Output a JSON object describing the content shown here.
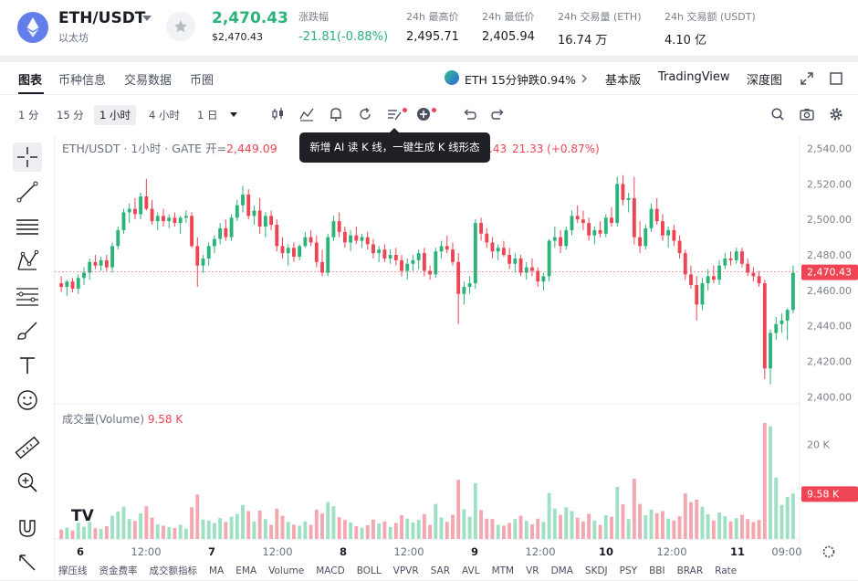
{
  "header": {
    "pair": "ETH/USDT",
    "coin_name": "以太坊",
    "last_price": "2,470.43",
    "last_price_usd": "$2,470.43",
    "change_label": "涨跌幅",
    "change_value": "-21.81(-0.88%)",
    "high_label": "24h 最高价",
    "high_value": "2,495.71",
    "low_label": "24h 最低价",
    "low_value": "2,405.94",
    "vol_label": "24h 交易量 (ETH)",
    "vol_value": "16.74 万",
    "turnover_label": "24h 交易额 (USDT)",
    "turnover_value": "4.10 亿"
  },
  "tabs": {
    "items": [
      "图表",
      "币种信息",
      "交易数据",
      "币圈"
    ],
    "eth_move": "ETH 15分钟跌0.94%",
    "basic": "基本版",
    "tradingview": "TradingView",
    "depth": "深度图"
  },
  "toolbar": {
    "timeframes": [
      "1 分",
      "15 分",
      "1 小时",
      "4 小时",
      "1 日"
    ],
    "active_timeframe": "1 小时"
  },
  "tooltip": "新增 AI 读 K 线，一键生成 K 线形态",
  "legend": {
    "symbol": "ETH/USDT · 1小时 · GATE",
    "open_label": "开=",
    "open_value": "2,449.09",
    "change_tail": ".43",
    "change_full": "21.33 (+0.87%)",
    "volume_label": "成交量(Volume)",
    "volume_value": "9.58 K"
  },
  "indicators": [
    "撑压线",
    "资金费率",
    "成交额指标",
    "MA",
    "EMA",
    "Volume",
    "MACD",
    "BOLL",
    "VPVR",
    "SAR",
    "AVL",
    "MTM",
    "VR",
    "DMA",
    "SKDJ",
    "PSY",
    "BBI",
    "BRAR",
    "Rate"
  ],
  "colors": {
    "up": "#2bb37a",
    "down": "#ef4453",
    "up_vol": "#9ee0c3",
    "down_vol": "#f5a7b0"
  },
  "chart_data": {
    "type": "candlestick",
    "price_axis": [
      "2,540.00",
      "2,520.00",
      "2,500.00",
      "2,480.00",
      "2,460.00",
      "2,440.00",
      "2,420.00",
      "2,400.00"
    ],
    "price_ylim": [
      2396.6,
      2547.5
    ],
    "volume_axis": [
      "20 K"
    ],
    "volume_ylim": [
      0,
      27000
    ],
    "time_axis": [
      "6",
      "12:00",
      "7",
      "12:00",
      "8",
      "12:00",
      "9",
      "12:00",
      "10",
      "12:00",
      "11",
      "09:00"
    ],
    "last_price": 2470.43,
    "last_price_label": "2,470.43",
    "last_volume_label": "9.58 K",
    "last_volume": 9580,
    "candles": [
      {
        "o": 2464,
        "h": 2468,
        "l": 2459,
        "c": 2462,
        "v": 2000
      },
      {
        "o": 2462,
        "h": 2466,
        "l": 2457,
        "c": 2465,
        "v": 2400
      },
      {
        "o": 2465,
        "h": 2467,
        "l": 2459,
        "c": 2461,
        "v": 1800
      },
      {
        "o": 2461,
        "h": 2469,
        "l": 2458,
        "c": 2467,
        "v": 3400
      },
      {
        "o": 2467,
        "h": 2473,
        "l": 2463,
        "c": 2470,
        "v": 2600
      },
      {
        "o": 2470,
        "h": 2478,
        "l": 2466,
        "c": 2476,
        "v": 3600
      },
      {
        "o": 2476,
        "h": 2480,
        "l": 2472,
        "c": 2474,
        "v": 2300
      },
      {
        "o": 2474,
        "h": 2479,
        "l": 2471,
        "c": 2477,
        "v": 2100
      },
      {
        "o": 2477,
        "h": 2480,
        "l": 2471,
        "c": 2473,
        "v": 2700
      },
      {
        "o": 2473,
        "h": 2487,
        "l": 2470,
        "c": 2485,
        "v": 4900
      },
      {
        "o": 2485,
        "h": 2496,
        "l": 2483,
        "c": 2494,
        "v": 5800
      },
      {
        "o": 2494,
        "h": 2506,
        "l": 2492,
        "c": 2504,
        "v": 6800
      },
      {
        "o": 2504,
        "h": 2509,
        "l": 2498,
        "c": 2506,
        "v": 4200
      },
      {
        "o": 2506,
        "h": 2512,
        "l": 2500,
        "c": 2503,
        "v": 3800
      },
      {
        "o": 2503,
        "h": 2515,
        "l": 2500,
        "c": 2513,
        "v": 5400
      },
      {
        "o": 2513,
        "h": 2523,
        "l": 2505,
        "c": 2506,
        "v": 6900
      },
      {
        "o": 2506,
        "h": 2511,
        "l": 2497,
        "c": 2499,
        "v": 4500
      },
      {
        "o": 2499,
        "h": 2504,
        "l": 2494,
        "c": 2502,
        "v": 3100
      },
      {
        "o": 2502,
        "h": 2506,
        "l": 2496,
        "c": 2499,
        "v": 2800
      },
      {
        "o": 2499,
        "h": 2503,
        "l": 2495,
        "c": 2501,
        "v": 2500
      },
      {
        "o": 2501,
        "h": 2504,
        "l": 2496,
        "c": 2498,
        "v": 2300
      },
      {
        "o": 2498,
        "h": 2502,
        "l": 2492,
        "c": 2501,
        "v": 3000
      },
      {
        "o": 2501,
        "h": 2505,
        "l": 2498,
        "c": 2502,
        "v": 2200
      },
      {
        "o": 2502,
        "h": 2504,
        "l": 2484,
        "c": 2485,
        "v": 6700
      },
      {
        "o": 2485,
        "h": 2490,
        "l": 2462,
        "c": 2474,
        "v": 9400
      },
      {
        "o": 2474,
        "h": 2480,
        "l": 2470,
        "c": 2478,
        "v": 4100
      },
      {
        "o": 2478,
        "h": 2487,
        "l": 2474,
        "c": 2485,
        "v": 3900
      },
      {
        "o": 2485,
        "h": 2491,
        "l": 2481,
        "c": 2489,
        "v": 3400
      },
      {
        "o": 2489,
        "h": 2498,
        "l": 2486,
        "c": 2495,
        "v": 4400
      },
      {
        "o": 2495,
        "h": 2500,
        "l": 2488,
        "c": 2490,
        "v": 3600
      },
      {
        "o": 2490,
        "h": 2503,
        "l": 2488,
        "c": 2501,
        "v": 4700
      },
      {
        "o": 2501,
        "h": 2511,
        "l": 2499,
        "c": 2508,
        "v": 5300
      },
      {
        "o": 2508,
        "h": 2519,
        "l": 2504,
        "c": 2514,
        "v": 7200
      },
      {
        "o": 2514,
        "h": 2517,
        "l": 2500,
        "c": 2502,
        "v": 5900
      },
      {
        "o": 2502,
        "h": 2508,
        "l": 2497,
        "c": 2505,
        "v": 3700
      },
      {
        "o": 2505,
        "h": 2512,
        "l": 2492,
        "c": 2496,
        "v": 6000
      },
      {
        "o": 2496,
        "h": 2504,
        "l": 2490,
        "c": 2502,
        "v": 4200
      },
      {
        "o": 2502,
        "h": 2505,
        "l": 2494,
        "c": 2497,
        "v": 3000
      },
      {
        "o": 2497,
        "h": 2500,
        "l": 2482,
        "c": 2485,
        "v": 6400
      },
      {
        "o": 2485,
        "h": 2490,
        "l": 2478,
        "c": 2481,
        "v": 4900
      },
      {
        "o": 2481,
        "h": 2486,
        "l": 2474,
        "c": 2484,
        "v": 3600
      },
      {
        "o": 2484,
        "h": 2487,
        "l": 2476,
        "c": 2479,
        "v": 3000
      },
      {
        "o": 2479,
        "h": 2486,
        "l": 2477,
        "c": 2485,
        "v": 2800
      },
      {
        "o": 2485,
        "h": 2493,
        "l": 2484,
        "c": 2490,
        "v": 3700
      },
      {
        "o": 2490,
        "h": 2494,
        "l": 2485,
        "c": 2487,
        "v": 3000
      },
      {
        "o": 2487,
        "h": 2491,
        "l": 2473,
        "c": 2476,
        "v": 6200
      },
      {
        "o": 2476,
        "h": 2483,
        "l": 2468,
        "c": 2470,
        "v": 5400
      },
      {
        "o": 2470,
        "h": 2492,
        "l": 2468,
        "c": 2490,
        "v": 7800
      },
      {
        "o": 2490,
        "h": 2502,
        "l": 2488,
        "c": 2499,
        "v": 6900
      },
      {
        "o": 2499,
        "h": 2504,
        "l": 2490,
        "c": 2493,
        "v": 4600
      },
      {
        "o": 2493,
        "h": 2496,
        "l": 2484,
        "c": 2487,
        "v": 4000
      },
      {
        "o": 2487,
        "h": 2494,
        "l": 2482,
        "c": 2491,
        "v": 3500
      },
      {
        "o": 2491,
        "h": 2496,
        "l": 2486,
        "c": 2488,
        "v": 2700
      },
      {
        "o": 2488,
        "h": 2492,
        "l": 2484,
        "c": 2490,
        "v": 2400
      },
      {
        "o": 2490,
        "h": 2493,
        "l": 2483,
        "c": 2486,
        "v": 2900
      },
      {
        "o": 2486,
        "h": 2489,
        "l": 2478,
        "c": 2481,
        "v": 4100
      },
      {
        "o": 2481,
        "h": 2485,
        "l": 2476,
        "c": 2483,
        "v": 3300
      },
      {
        "o": 2483,
        "h": 2486,
        "l": 2476,
        "c": 2478,
        "v": 3700
      },
      {
        "o": 2478,
        "h": 2483,
        "l": 2475,
        "c": 2480,
        "v": 2500
      },
      {
        "o": 2480,
        "h": 2484,
        "l": 2474,
        "c": 2477,
        "v": 3400
      },
      {
        "o": 2477,
        "h": 2480,
        "l": 2468,
        "c": 2471,
        "v": 5000
      },
      {
        "o": 2471,
        "h": 2478,
        "l": 2466,
        "c": 2475,
        "v": 4300
      },
      {
        "o": 2475,
        "h": 2480,
        "l": 2471,
        "c": 2477,
        "v": 3500
      },
      {
        "o": 2477,
        "h": 2483,
        "l": 2472,
        "c": 2481,
        "v": 4000
      },
      {
        "o": 2481,
        "h": 2484,
        "l": 2468,
        "c": 2471,
        "v": 5200
      },
      {
        "o": 2471,
        "h": 2474,
        "l": 2466,
        "c": 2469,
        "v": 3000
      },
      {
        "o": 2469,
        "h": 2484,
        "l": 2467,
        "c": 2482,
        "v": 7400
      },
      {
        "o": 2482,
        "h": 2488,
        "l": 2478,
        "c": 2485,
        "v": 4500
      },
      {
        "o": 2485,
        "h": 2491,
        "l": 2481,
        "c": 2483,
        "v": 3600
      },
      {
        "o": 2483,
        "h": 2487,
        "l": 2474,
        "c": 2476,
        "v": 5100
      },
      {
        "o": 2476,
        "h": 2481,
        "l": 2441,
        "c": 2458,
        "v": 12500
      },
      {
        "o": 2458,
        "h": 2465,
        "l": 2452,
        "c": 2462,
        "v": 6300
      },
      {
        "o": 2462,
        "h": 2468,
        "l": 2458,
        "c": 2464,
        "v": 4700
      },
      {
        "o": 2464,
        "h": 2500,
        "l": 2461,
        "c": 2498,
        "v": 11800
      },
      {
        "o": 2498,
        "h": 2501,
        "l": 2488,
        "c": 2492,
        "v": 6100
      },
      {
        "o": 2492,
        "h": 2495,
        "l": 2484,
        "c": 2487,
        "v": 4300
      },
      {
        "o": 2487,
        "h": 2490,
        "l": 2478,
        "c": 2482,
        "v": 4200
      },
      {
        "o": 2482,
        "h": 2486,
        "l": 2477,
        "c": 2484,
        "v": 3000
      },
      {
        "o": 2484,
        "h": 2488,
        "l": 2479,
        "c": 2480,
        "v": 2800
      },
      {
        "o": 2480,
        "h": 2484,
        "l": 2472,
        "c": 2475,
        "v": 3400
      },
      {
        "o": 2475,
        "h": 2481,
        "l": 2470,
        "c": 2478,
        "v": 4200
      },
      {
        "o": 2478,
        "h": 2480,
        "l": 2468,
        "c": 2470,
        "v": 4900
      },
      {
        "o": 2470,
        "h": 2476,
        "l": 2466,
        "c": 2473,
        "v": 3800
      },
      {
        "o": 2473,
        "h": 2478,
        "l": 2468,
        "c": 2471,
        "v": 3100
      },
      {
        "o": 2471,
        "h": 2473,
        "l": 2462,
        "c": 2465,
        "v": 4300
      },
      {
        "o": 2465,
        "h": 2470,
        "l": 2460,
        "c": 2468,
        "v": 3600
      },
      {
        "o": 2468,
        "h": 2489,
        "l": 2465,
        "c": 2488,
        "v": 9700
      },
      {
        "o": 2488,
        "h": 2496,
        "l": 2484,
        "c": 2490,
        "v": 6400
      },
      {
        "o": 2490,
        "h": 2494,
        "l": 2481,
        "c": 2485,
        "v": 5100
      },
      {
        "o": 2485,
        "h": 2496,
        "l": 2483,
        "c": 2494,
        "v": 6700
      },
      {
        "o": 2494,
        "h": 2505,
        "l": 2491,
        "c": 2502,
        "v": 5900
      },
      {
        "o": 2502,
        "h": 2508,
        "l": 2498,
        "c": 2500,
        "v": 4500
      },
      {
        "o": 2500,
        "h": 2505,
        "l": 2494,
        "c": 2498,
        "v": 3700
      },
      {
        "o": 2498,
        "h": 2501,
        "l": 2488,
        "c": 2491,
        "v": 5300
      },
      {
        "o": 2491,
        "h": 2496,
        "l": 2486,
        "c": 2494,
        "v": 3900
      },
      {
        "o": 2494,
        "h": 2499,
        "l": 2490,
        "c": 2492,
        "v": 3000
      },
      {
        "o": 2492,
        "h": 2503,
        "l": 2490,
        "c": 2501,
        "v": 5000
      },
      {
        "o": 2501,
        "h": 2507,
        "l": 2496,
        "c": 2498,
        "v": 4700
      },
      {
        "o": 2498,
        "h": 2524,
        "l": 2496,
        "c": 2520,
        "v": 11000
      },
      {
        "o": 2520,
        "h": 2525,
        "l": 2508,
        "c": 2511,
        "v": 7300
      },
      {
        "o": 2511,
        "h": 2515,
        "l": 2504,
        "c": 2512,
        "v": 4200
      },
      {
        "o": 2512,
        "h": 2524,
        "l": 2486,
        "c": 2490,
        "v": 12700
      },
      {
        "o": 2490,
        "h": 2499,
        "l": 2481,
        "c": 2485,
        "v": 7400
      },
      {
        "o": 2485,
        "h": 2497,
        "l": 2483,
        "c": 2495,
        "v": 5000
      },
      {
        "o": 2495,
        "h": 2509,
        "l": 2493,
        "c": 2506,
        "v": 6200
      },
      {
        "o": 2506,
        "h": 2512,
        "l": 2497,
        "c": 2499,
        "v": 5400
      },
      {
        "o": 2499,
        "h": 2503,
        "l": 2488,
        "c": 2491,
        "v": 5900
      },
      {
        "o": 2491,
        "h": 2496,
        "l": 2484,
        "c": 2494,
        "v": 4300
      },
      {
        "o": 2494,
        "h": 2497,
        "l": 2485,
        "c": 2488,
        "v": 3900
      },
      {
        "o": 2488,
        "h": 2491,
        "l": 2478,
        "c": 2481,
        "v": 4800
      },
      {
        "o": 2481,
        "h": 2483,
        "l": 2466,
        "c": 2469,
        "v": 9600
      },
      {
        "o": 2469,
        "h": 2474,
        "l": 2461,
        "c": 2463,
        "v": 7800
      },
      {
        "o": 2463,
        "h": 2468,
        "l": 2443,
        "c": 2452,
        "v": 8300
      },
      {
        "o": 2452,
        "h": 2467,
        "l": 2449,
        "c": 2464,
        "v": 6800
      },
      {
        "o": 2464,
        "h": 2472,
        "l": 2460,
        "c": 2468,
        "v": 5200
      },
      {
        "o": 2468,
        "h": 2474,
        "l": 2464,
        "c": 2466,
        "v": 3900
      },
      {
        "o": 2466,
        "h": 2477,
        "l": 2463,
        "c": 2474,
        "v": 5600
      },
      {
        "o": 2474,
        "h": 2481,
        "l": 2472,
        "c": 2478,
        "v": 4800
      },
      {
        "o": 2478,
        "h": 2482,
        "l": 2474,
        "c": 2477,
        "v": 3700
      },
      {
        "o": 2477,
        "h": 2484,
        "l": 2475,
        "c": 2482,
        "v": 4400
      },
      {
        "o": 2482,
        "h": 2484,
        "l": 2473,
        "c": 2475,
        "v": 5100
      },
      {
        "o": 2475,
        "h": 2478,
        "l": 2468,
        "c": 2470,
        "v": 4200
      },
      {
        "o": 2470,
        "h": 2473,
        "l": 2465,
        "c": 2468,
        "v": 3600
      },
      {
        "o": 2468,
        "h": 2471,
        "l": 2462,
        "c": 2464,
        "v": 4000
      },
      {
        "o": 2464,
        "h": 2466,
        "l": 2410,
        "c": 2416,
        "v": 24500
      },
      {
        "o": 2416,
        "h": 2438,
        "l": 2407,
        "c": 2436,
        "v": 23800
      },
      {
        "o": 2436,
        "h": 2445,
        "l": 2432,
        "c": 2441,
        "v": 13000
      },
      {
        "o": 2441,
        "h": 2447,
        "l": 2436,
        "c": 2443,
        "v": 7200
      },
      {
        "o": 2443,
        "h": 2450,
        "l": 2432,
        "c": 2449,
        "v": 8900
      },
      {
        "o": 2449,
        "h": 2474,
        "l": 2447,
        "c": 2470,
        "v": 9580
      }
    ]
  }
}
